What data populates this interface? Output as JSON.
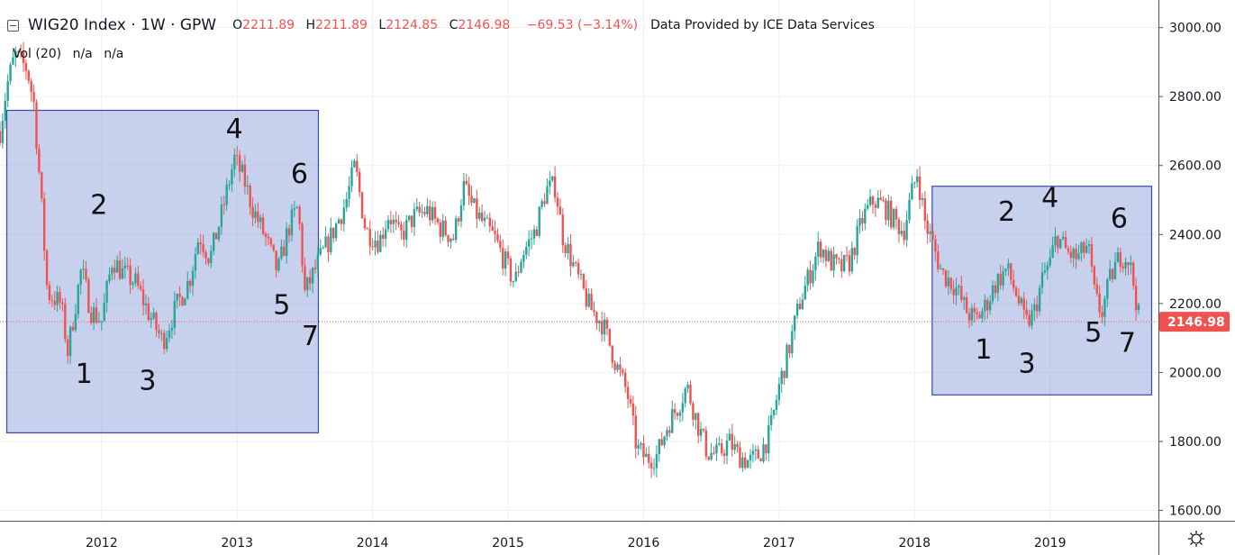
{
  "header": {
    "symbol": "WIG20 Index · 1W · GPW",
    "open_label": "O",
    "open": "2211.89",
    "high_label": "H",
    "high": "2211.89",
    "low_label": "L",
    "low": "2124.85",
    "close_label": "C",
    "close": "2146.98",
    "change": "−69.53 (−3.14%)",
    "provider": "Data Provided by ICE Data Services"
  },
  "volume": {
    "label": "Vol (20)",
    "v1": "n/a",
    "v2": "n/a"
  },
  "colors": {
    "up": "#26a69a",
    "down": "#ef5350",
    "box_fill": "#8fa1d9",
    "box_stroke": "#3949ab",
    "text": "#131722",
    "grid": "#eef0f3"
  },
  "icons": {
    "collapse": "minus-square-icon",
    "settings": "gear-icon"
  },
  "chart_data": {
    "type": "candlestick",
    "interval": "1W",
    "xlim": [
      2011.25,
      2019.8
    ],
    "ylim": [
      1570,
      3080
    ],
    "x_ticks": [
      "2012",
      "2013",
      "2014",
      "2015",
      "2016",
      "2017",
      "2018",
      "2019"
    ],
    "y_ticks": [
      "1600.00",
      "1800.00",
      "2000.00",
      "2200.00",
      "2400.00",
      "2600.00",
      "2800.00",
      "3000.00"
    ],
    "last_price": 2146.98,
    "last_price_label": "2146.98",
    "path": [
      [
        2011.25,
        2700
      ],
      [
        2011.3,
        2830
      ],
      [
        2011.36,
        2920
      ],
      [
        2011.45,
        2880
      ],
      [
        2011.5,
        2780
      ],
      [
        2011.55,
        2520
      ],
      [
        2011.6,
        2230
      ],
      [
        2011.7,
        2200
      ],
      [
        2011.75,
        2060
      ],
      [
        2011.85,
        2300
      ],
      [
        2011.92,
        2180
      ],
      [
        2012.0,
        2150
      ],
      [
        2012.08,
        2330
      ],
      [
        2012.15,
        2290
      ],
      [
        2012.25,
        2260
      ],
      [
        2012.35,
        2170
      ],
      [
        2012.45,
        2090
      ],
      [
        2012.55,
        2190
      ],
      [
        2012.65,
        2270
      ],
      [
        2012.72,
        2400
      ],
      [
        2012.8,
        2330
      ],
      [
        2012.88,
        2450
      ],
      [
        2012.98,
        2620
      ],
      [
        2013.05,
        2560
      ],
      [
        2013.12,
        2470
      ],
      [
        2013.2,
        2400
      ],
      [
        2013.3,
        2290
      ],
      [
        2013.38,
        2420
      ],
      [
        2013.45,
        2480
      ],
      [
        2013.5,
        2230
      ],
      [
        2013.6,
        2320
      ],
      [
        2013.7,
        2400
      ],
      [
        2013.8,
        2490
      ],
      [
        2013.87,
        2600
      ],
      [
        2013.95,
        2410
      ],
      [
        2014.05,
        2380
      ],
      [
        2014.12,
        2460
      ],
      [
        2014.2,
        2390
      ],
      [
        2014.3,
        2450
      ],
      [
        2014.4,
        2470
      ],
      [
        2014.5,
        2420
      ],
      [
        2014.6,
        2390
      ],
      [
        2014.67,
        2540
      ],
      [
        2014.75,
        2470
      ],
      [
        2014.82,
        2430
      ],
      [
        2014.9,
        2390
      ],
      [
        2015.0,
        2300
      ],
      [
        2015.05,
        2260
      ],
      [
        2015.1,
        2340
      ],
      [
        2015.2,
        2410
      ],
      [
        2015.28,
        2530
      ],
      [
        2015.35,
        2540
      ],
      [
        2015.4,
        2400
      ],
      [
        2015.5,
        2290
      ],
      [
        2015.6,
        2190
      ],
      [
        2015.7,
        2140
      ],
      [
        2015.8,
        2020
      ],
      [
        2015.88,
        1940
      ],
      [
        2015.95,
        1780
      ],
      [
        2016.02,
        1750
      ],
      [
        2016.1,
        1760
      ],
      [
        2016.18,
        1850
      ],
      [
        2016.25,
        1900
      ],
      [
        2016.32,
        1960
      ],
      [
        2016.4,
        1850
      ],
      [
        2016.47,
        1770
      ],
      [
        2016.55,
        1760
      ],
      [
        2016.63,
        1800
      ],
      [
        2016.7,
        1760
      ],
      [
        2016.78,
        1740
      ],
      [
        2016.85,
        1760
      ],
      [
        2016.93,
        1820
      ],
      [
        2017.0,
        1960
      ],
      [
        2017.08,
        2080
      ],
      [
        2017.15,
        2200
      ],
      [
        2017.23,
        2290
      ],
      [
        2017.3,
        2370
      ],
      [
        2017.38,
        2320
      ],
      [
        2017.45,
        2300
      ],
      [
        2017.52,
        2320
      ],
      [
        2017.62,
        2450
      ],
      [
        2017.7,
        2500
      ],
      [
        2017.78,
        2480
      ],
      [
        2017.85,
        2440
      ],
      [
        2017.92,
        2410
      ],
      [
        2017.98,
        2520
      ],
      [
        2018.02,
        2580
      ],
      [
        2018.08,
        2430
      ],
      [
        2018.12,
        2390
      ],
      [
        2018.2,
        2290
      ],
      [
        2018.3,
        2250
      ],
      [
        2018.38,
        2180
      ],
      [
        2018.45,
        2150
      ],
      [
        2018.52,
        2190
      ],
      [
        2018.6,
        2260
      ],
      [
        2018.68,
        2300
      ],
      [
        2018.75,
        2230
      ],
      [
        2018.82,
        2140
      ],
      [
        2018.88,
        2170
      ],
      [
        2018.95,
        2280
      ],
      [
        2019.0,
        2320
      ],
      [
        2019.05,
        2400
      ],
      [
        2019.12,
        2350
      ],
      [
        2019.2,
        2330
      ],
      [
        2019.28,
        2370
      ],
      [
        2019.33,
        2220
      ],
      [
        2019.38,
        2170
      ],
      [
        2019.45,
        2280
      ],
      [
        2019.52,
        2340
      ],
      [
        2019.58,
        2330
      ],
      [
        2019.62,
        2250
      ],
      [
        2019.66,
        2147
      ]
    ],
    "annotations": [
      {
        "type": "rectangle",
        "x": [
          2011.3,
          2013.6
        ],
        "y": [
          1825,
          2760
        ]
      },
      {
        "type": "rectangle",
        "x": [
          2018.13,
          2019.75
        ],
        "y": [
          1935,
          2540
        ]
      },
      {
        "text": "1",
        "x": 2011.87,
        "y": 1970
      },
      {
        "text": "2",
        "x": 2011.98,
        "y": 2460
      },
      {
        "text": "3",
        "x": 2012.34,
        "y": 1950
      },
      {
        "text": "4",
        "x": 2012.98,
        "y": 2680
      },
      {
        "text": "5",
        "x": 2013.33,
        "y": 2170
      },
      {
        "text": "6",
        "x": 2013.46,
        "y": 2550
      },
      {
        "text": "7",
        "x": 2013.54,
        "y": 2080
      },
      {
        "text": "1",
        "x": 2018.51,
        "y": 2040
      },
      {
        "text": "2",
        "x": 2018.68,
        "y": 2440
      },
      {
        "text": "3",
        "x": 2018.83,
        "y": 2000
      },
      {
        "text": "4",
        "x": 2019.0,
        "y": 2480
      },
      {
        "text": "5",
        "x": 2019.32,
        "y": 2090
      },
      {
        "text": "6",
        "x": 2019.51,
        "y": 2420
      },
      {
        "text": "7",
        "x": 2019.57,
        "y": 2060
      }
    ]
  }
}
